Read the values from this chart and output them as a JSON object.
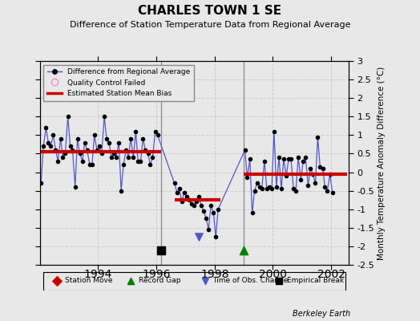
{
  "title": "CHARLES TOWN 1 SE",
  "subtitle": "Difference of Station Temperature Data from Regional Average",
  "ylabel": "Monthly Temperature Anomaly Difference (°C)",
  "background_color": "#e8e8e8",
  "plot_bg_color": "#e8e8e8",
  "ylim": [
    -2.5,
    3.0
  ],
  "yticks_right": [
    3,
    2.5,
    2,
    1.5,
    1,
    0.5,
    0,
    -0.5,
    -1,
    -1.5,
    -2,
    -2.5
  ],
  "ytick_labels_right": [
    "3",
    "2.5",
    "2",
    "1.5",
    "1",
    "0.5",
    "0",
    "-0.5",
    "-1",
    "-1.5",
    "-2",
    "-2.5"
  ],
  "line_color": "#5555cc",
  "marker_color": "#000000",
  "bias_color": "#cc0000",
  "segment1_x_start": 1992.0,
  "segment1_x_end": 1996.15,
  "segment1_bias": 0.55,
  "segment2_x_start": 1996.62,
  "segment2_x_end": 1998.2,
  "segment2_bias": -0.75,
  "segment3_x_start": 1999.0,
  "segment3_x_end": 2002.55,
  "segment3_bias": -0.05,
  "break1_x": 1996.15,
  "break1_y": -2.1,
  "record_gap_x": 1999.0,
  "record_gap_y": -2.1,
  "obs_change_x": 1997.45,
  "obs_change_y": -1.75,
  "vline1_x": 1996.15,
  "vline2_x": 1999.0,
  "data_x": [
    1992.04,
    1992.12,
    1992.21,
    1992.29,
    1992.37,
    1992.46,
    1992.54,
    1992.62,
    1992.71,
    1992.79,
    1992.87,
    1992.96,
    1993.04,
    1993.12,
    1993.21,
    1993.29,
    1993.37,
    1993.46,
    1993.54,
    1993.62,
    1993.71,
    1993.79,
    1993.87,
    1993.96,
    1994.04,
    1994.12,
    1994.21,
    1994.29,
    1994.37,
    1994.46,
    1994.54,
    1994.62,
    1994.71,
    1994.79,
    1994.87,
    1994.96,
    1995.04,
    1995.12,
    1995.21,
    1995.29,
    1995.37,
    1995.46,
    1995.54,
    1995.62,
    1995.71,
    1995.79,
    1995.87,
    1995.96,
    1996.04,
    1996.62,
    1996.71,
    1996.79,
    1996.87,
    1996.96,
    1997.04,
    1997.12,
    1997.21,
    1997.29,
    1997.37,
    1997.46,
    1997.54,
    1997.62,
    1997.71,
    1997.79,
    1997.87,
    1997.96,
    1998.04,
    1998.12,
    1999.04,
    1999.12,
    1999.21,
    1999.29,
    1999.37,
    1999.46,
    1999.54,
    1999.62,
    1999.71,
    1999.79,
    1999.87,
    1999.96,
    2000.04,
    2000.12,
    2000.21,
    2000.29,
    2000.37,
    2000.46,
    2000.54,
    2000.62,
    2000.71,
    2000.79,
    2000.87,
    2000.96,
    2001.04,
    2001.12,
    2001.21,
    2001.29,
    2001.37,
    2001.46,
    2001.54,
    2001.62,
    2001.71,
    2001.79,
    2001.87,
    2001.96,
    2002.04
  ],
  "data_y": [
    -0.3,
    0.7,
    1.2,
    0.8,
    0.7,
    1.0,
    0.6,
    0.3,
    0.9,
    0.4,
    0.5,
    1.5,
    0.7,
    0.6,
    -0.4,
    0.9,
    0.5,
    0.3,
    0.8,
    0.6,
    0.2,
    0.2,
    1.0,
    0.6,
    0.7,
    0.5,
    1.5,
    0.9,
    0.8,
    0.4,
    0.5,
    0.4,
    0.8,
    -0.5,
    0.2,
    0.6,
    0.4,
    0.9,
    0.4,
    1.1,
    0.3,
    0.3,
    0.9,
    0.6,
    0.5,
    0.2,
    0.4,
    1.1,
    1.0,
    -0.3,
    -0.55,
    -0.45,
    -0.8,
    -0.55,
    -0.65,
    -0.75,
    -0.85,
    -0.9,
    -0.8,
    -0.65,
    -0.9,
    -1.05,
    -1.25,
    -1.55,
    -0.9,
    -1.1,
    -1.75,
    -1.0,
    0.6,
    -0.15,
    0.35,
    -1.1,
    -0.5,
    -0.3,
    -0.4,
    -0.45,
    0.3,
    -0.45,
    -0.4,
    -0.45,
    1.1,
    -0.4,
    0.4,
    -0.45,
    0.35,
    -0.1,
    0.35,
    0.35,
    -0.45,
    -0.5,
    0.4,
    -0.2,
    0.3,
    0.4,
    -0.35,
    0.1,
    -0.05,
    -0.3,
    0.95,
    0.15,
    0.1,
    -0.4,
    -0.5,
    -0.05,
    -0.55
  ],
  "footer_text": "Berkeley Earth",
  "xticks": [
    1994,
    1996,
    1998,
    2000,
    2002
  ],
  "xlim": [
    1992.0,
    2002.6
  ]
}
